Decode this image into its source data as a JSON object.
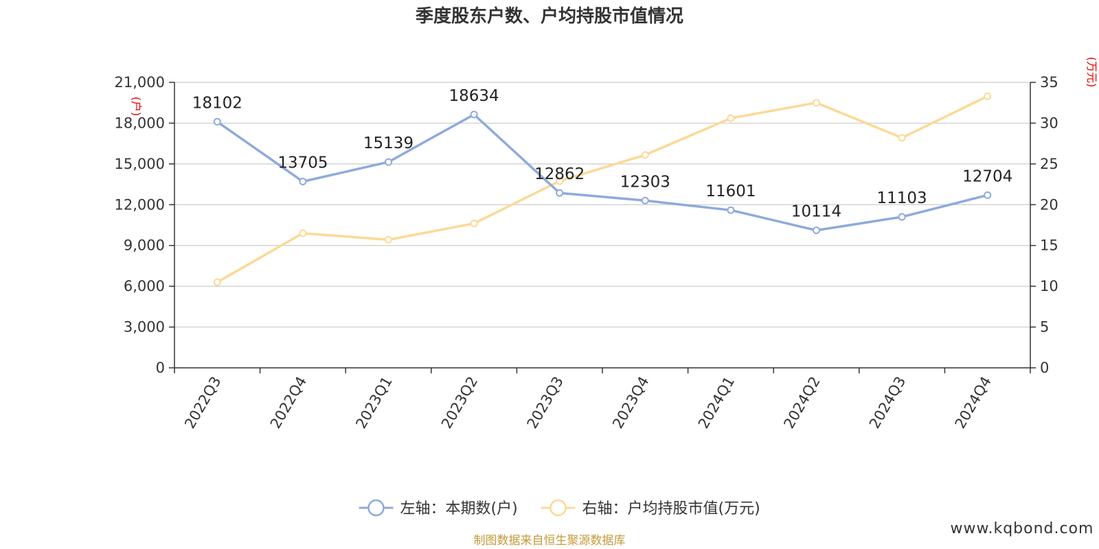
{
  "chart_data": {
    "type": "line",
    "title": "季度股东户数、户均持股市值情况",
    "categories": [
      "2022Q3",
      "2022Q4",
      "2023Q1",
      "2023Q2",
      "2023Q3",
      "2023Q4",
      "2024Q1",
      "2024Q2",
      "2024Q3",
      "2024Q4"
    ],
    "left_axis": {
      "unit": "(户)",
      "ylim": [
        0,
        21000
      ],
      "ticks": [
        0,
        3000,
        6000,
        9000,
        12000,
        15000,
        18000,
        21000
      ],
      "tick_labels": [
        "0",
        "3,000",
        "6,000",
        "9,000",
        "12,000",
        "15,000",
        "18,000",
        "21,000"
      ]
    },
    "right_axis": {
      "unit": "(万元)",
      "ylim": [
        0,
        35
      ],
      "ticks": [
        0,
        5,
        10,
        15,
        20,
        25,
        30,
        35
      ],
      "tick_labels": [
        "0",
        "5",
        "10",
        "15",
        "20",
        "25",
        "30",
        "35"
      ]
    },
    "series": [
      {
        "name": "左轴：本期数(户)",
        "axis": "left",
        "color": "#8eaadb",
        "values": [
          18102,
          13705,
          15139,
          18634,
          12862,
          12303,
          11601,
          10114,
          11103,
          12704
        ],
        "show_labels": true
      },
      {
        "name": "右轴：户均持股市值(万元)",
        "axis": "right",
        "color": "#fcd996",
        "values": [
          10.5,
          16.5,
          15.7,
          17.7,
          22.9,
          26.1,
          30.6,
          32.5,
          28.2,
          33.3
        ],
        "show_labels": false
      }
    ],
    "grid": true,
    "legend_position": "bottom-center"
  },
  "footer": {
    "source": "制图数据来自恒生聚源数据库",
    "watermark": "www.kqbond.com"
  }
}
